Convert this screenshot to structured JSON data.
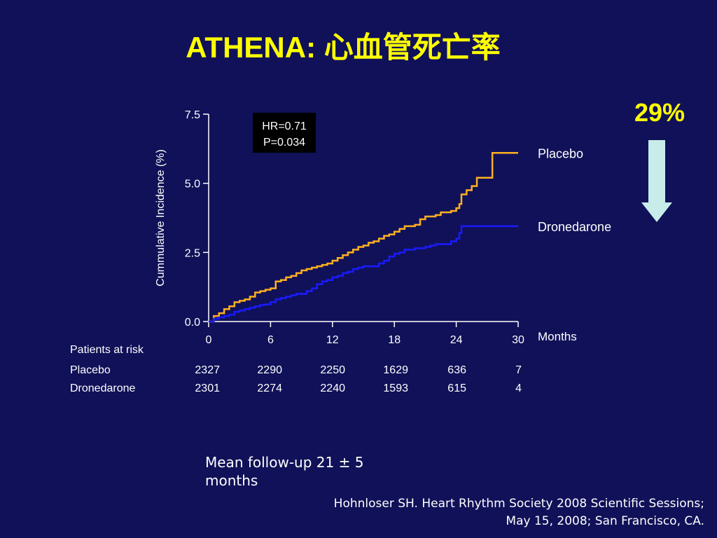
{
  "title": "ATHENA: 心血管死亡率",
  "reduction_label": "29%",
  "stats_box": {
    "line1": "HR=0.71",
    "line2": "P=0.034"
  },
  "footnote": "Mean follow-up 21 ± 5 months",
  "citation": "Hohnloser SH. Heart Rhythm Society 2008 Scientific Sessions; May 15, 2008; San Francisco, CA.",
  "colors": {
    "background": "#101158",
    "placebo": "#ffb020",
    "dronedarone": "#1a1aff",
    "title": "#ffff00",
    "arrow": "#c8ecea"
  },
  "risk_table": {
    "title": "Patients at risk",
    "rows": [
      {
        "label": "Placebo",
        "values": [
          "2327",
          "2290",
          "2250",
          "1629",
          "636",
          "7"
        ]
      },
      {
        "label": "Dronedarone",
        "values": [
          "2301",
          "2274",
          "2240",
          "1593",
          "615",
          "4"
        ]
      }
    ]
  },
  "chart_data": {
    "type": "line",
    "title": "",
    "xlabel": "Months",
    "ylabel": "Cummulative Incidence (%)",
    "xlim": [
      0,
      30
    ],
    "ylim": [
      0,
      7.5
    ],
    "xticks": [
      0,
      6,
      12,
      18,
      24,
      30
    ],
    "yticks": [
      0.0,
      2.5,
      5.0,
      7.5
    ],
    "ytick_labels": [
      "0.0",
      "2.5",
      "5.0",
      "7.5"
    ],
    "grid": false,
    "legend": "right-of-lines",
    "series": [
      {
        "name": "Placebo",
        "step": true,
        "x": [
          0,
          0.5,
          1,
          1.5,
          2,
          2.5,
          3,
          3.5,
          4,
          4.5,
          5,
          5.5,
          6,
          6.5,
          7,
          7.5,
          8,
          8.5,
          9,
          9.5,
          10,
          10.5,
          11,
          11.5,
          12,
          12.5,
          13,
          13.5,
          14,
          14.5,
          15,
          15.5,
          16,
          16.5,
          17,
          17.5,
          18,
          18.5,
          19,
          19.5,
          20,
          20.5,
          21,
          21.5,
          22,
          22.5,
          23,
          23.5,
          24,
          24.3,
          24.5,
          25,
          25.5,
          26,
          26.5,
          27,
          27.5,
          28,
          29,
          30
        ],
        "y": [
          0,
          0.2,
          0.3,
          0.45,
          0.55,
          0.7,
          0.75,
          0.8,
          0.9,
          1.05,
          1.1,
          1.15,
          1.2,
          1.45,
          1.5,
          1.6,
          1.65,
          1.75,
          1.85,
          1.9,
          1.95,
          2.0,
          2.05,
          2.1,
          2.2,
          2.3,
          2.4,
          2.5,
          2.6,
          2.7,
          2.75,
          2.85,
          2.9,
          3.0,
          3.1,
          3.15,
          3.25,
          3.35,
          3.45,
          3.45,
          3.5,
          3.7,
          3.8,
          3.8,
          3.85,
          3.95,
          3.95,
          4.0,
          4.1,
          4.25,
          4.6,
          4.75,
          4.9,
          5.2,
          5.2,
          5.2,
          6.1,
          6.1,
          6.1,
          6.1
        ]
      },
      {
        "name": "Dronedarone",
        "step": true,
        "x": [
          0,
          0.5,
          1,
          1.5,
          2,
          2.5,
          3,
          3.5,
          4,
          4.5,
          5,
          5.5,
          6,
          6.5,
          7,
          7.5,
          8,
          8.5,
          9,
          9.5,
          10,
          10.5,
          11,
          11.5,
          12,
          12.5,
          13,
          13.5,
          14,
          14.5,
          15,
          15.5,
          16,
          16.5,
          17,
          17.5,
          18,
          18.5,
          19,
          19.5,
          20,
          21,
          21.5,
          22,
          22.5,
          23,
          23.5,
          24,
          24.3,
          24.5,
          25,
          26,
          27,
          28,
          29,
          30
        ],
        "y": [
          0,
          0.1,
          0.15,
          0.2,
          0.25,
          0.35,
          0.4,
          0.45,
          0.5,
          0.55,
          0.6,
          0.62,
          0.7,
          0.8,
          0.85,
          0.9,
          0.95,
          1.0,
          1.0,
          1.1,
          1.2,
          1.35,
          1.45,
          1.5,
          1.6,
          1.65,
          1.75,
          1.8,
          1.9,
          1.95,
          2.0,
          2.0,
          2.0,
          2.1,
          2.2,
          2.35,
          2.45,
          2.5,
          2.6,
          2.6,
          2.65,
          2.7,
          2.75,
          2.8,
          2.8,
          2.8,
          2.9,
          3.0,
          3.2,
          3.45,
          3.45,
          3.45,
          3.45,
          3.45,
          3.45,
          3.45
        ]
      }
    ]
  }
}
